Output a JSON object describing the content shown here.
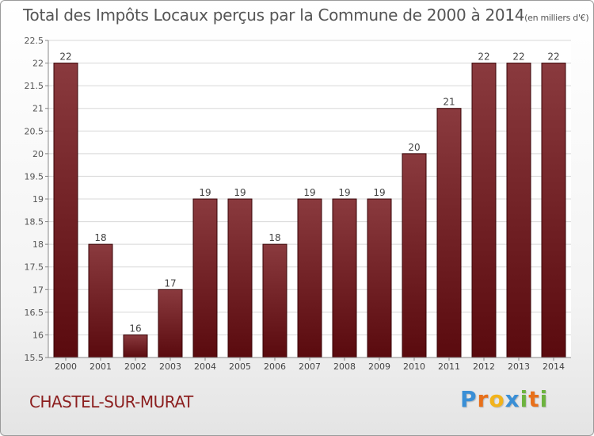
{
  "chart_data": {
    "type": "bar",
    "title": "Total des Impôts Locaux perçus par la Commune de 2000 à 2014",
    "unit_note": "(en milliers d'€)",
    "xlabel": "",
    "ylabel": "",
    "categories": [
      "2000",
      "2001",
      "2002",
      "2003",
      "2004",
      "2005",
      "2006",
      "2007",
      "2008",
      "2009",
      "2010",
      "2011",
      "2012",
      "2013",
      "2014"
    ],
    "values": [
      22,
      18,
      16,
      17,
      19,
      19,
      18,
      19,
      19,
      19,
      20,
      21,
      22,
      22,
      22
    ],
    "data_labels": [
      "22",
      "18",
      "16",
      "17",
      "19",
      "19",
      "18",
      "19",
      "19",
      "19",
      "20",
      "21",
      "22",
      "22",
      "22"
    ],
    "ylim": [
      15.5,
      22.5
    ],
    "yticks": [
      15.5,
      16,
      16.5,
      17,
      17.5,
      18,
      18.5,
      19,
      19.5,
      20,
      20.5,
      21,
      21.5,
      22,
      22.5
    ],
    "ytick_labels": [
      "15.5",
      "16",
      "16.5",
      "17",
      "17.5",
      "18",
      "18.5",
      "19",
      "19.5",
      "20",
      "20.5",
      "21",
      "21.5",
      "22",
      "22.5"
    ],
    "grid": true,
    "bar_color": "#5a0a0e",
    "bar_color_light": "#8a3a3e"
  },
  "footer": {
    "commune": "CHASTEL-SUR-MURAT",
    "brand_letters": [
      "P",
      "r",
      "o",
      "x",
      "i",
      "t",
      "i"
    ],
    "brand_colors": [
      "#3a8fd6",
      "#e8701a",
      "#f2b31b",
      "#3a8fd6",
      "#6db33f",
      "#e8701a",
      "#6db33f"
    ]
  }
}
